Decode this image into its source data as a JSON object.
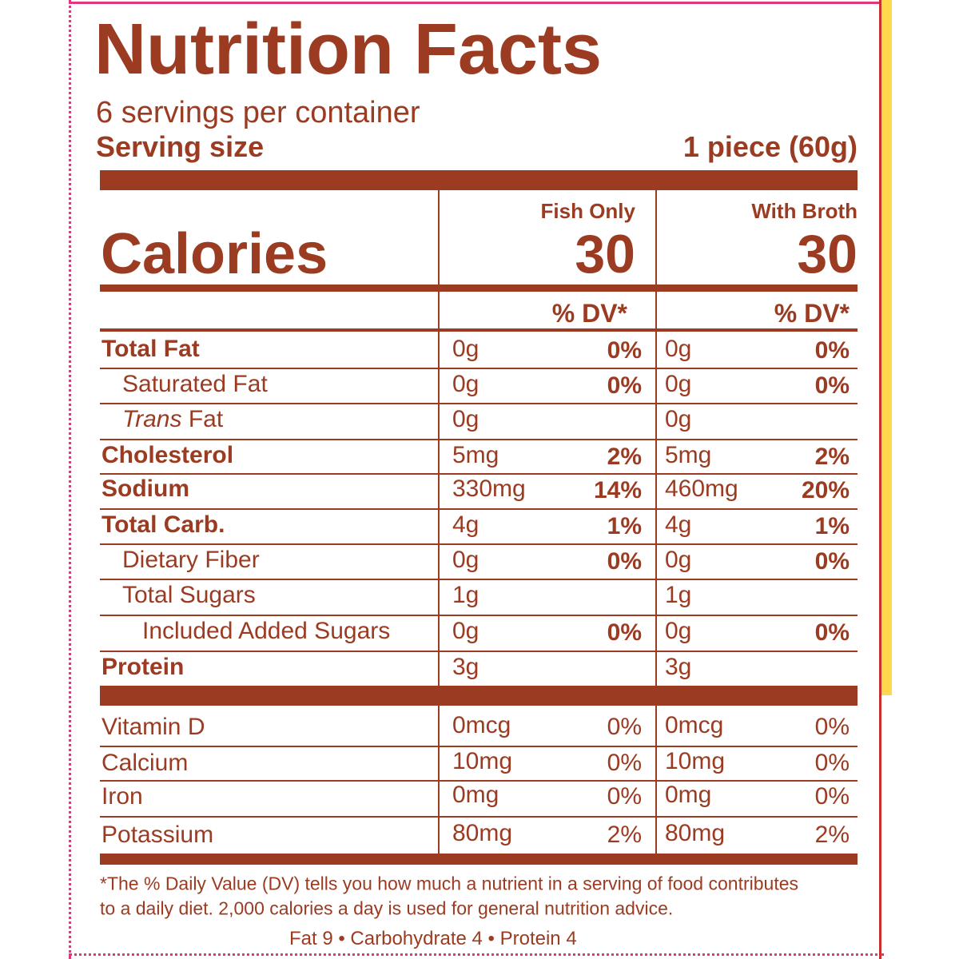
{
  "title": "Nutrition Facts",
  "servings": "6 servings per container",
  "serving_size": {
    "label": "Serving size",
    "value": "1 piece (60g)"
  },
  "calories_label": "Calories",
  "columns": [
    {
      "heading": "Fish Only",
      "calories": 30,
      "dv_heading": "% DV*"
    },
    {
      "heading": "With Broth",
      "calories": 30,
      "dv_heading": "% DV*"
    }
  ],
  "nutrients": [
    {
      "label": "Total Fat",
      "cells": [
        [
          "0g",
          "0%"
        ],
        [
          "0g",
          "0%"
        ]
      ]
    },
    {
      "label": "Saturated Fat",
      "cells": [
        [
          "0g",
          "0%"
        ],
        [
          "0g",
          "0%"
        ]
      ]
    },
    {
      "label_italic": "Trans",
      "label": "Fat",
      "cells": [
        [
          "0g"
        ],
        [
          "0g"
        ]
      ]
    },
    {
      "label": "Cholesterol",
      "cells": [
        [
          "5mg",
          "2%"
        ],
        [
          "5mg",
          "2%"
        ]
      ]
    },
    {
      "label": "Sodium",
      "cells": [
        [
          "330mg",
          "14%"
        ],
        [
          "460mg",
          "20%"
        ]
      ]
    },
    {
      "label": "Total Carb.",
      "cells": [
        [
          "4g",
          "1%"
        ],
        [
          "4g",
          "1%"
        ]
      ]
    },
    {
      "label": "Dietary Fiber",
      "cells": [
        [
          "0g",
          "0%"
        ],
        [
          "0g",
          "0%"
        ]
      ]
    },
    {
      "label": "Total Sugars",
      "cells": [
        [
          "1g"
        ],
        [
          "1g"
        ]
      ]
    },
    {
      "label": "Included Added Sugars",
      "cells": [
        [
          "0g",
          "0%"
        ],
        [
          "0g",
          "0%"
        ]
      ]
    },
    {
      "label": "Protein",
      "cells": [
        [
          "3g"
        ],
        [
          "3g"
        ]
      ]
    }
  ],
  "vitamins": [
    {
      "label": "Vitamin D",
      "cells": [
        [
          "0mcg",
          "0%"
        ],
        [
          "0mcg",
          "0%"
        ]
      ]
    },
    {
      "label": "Calcium",
      "cells": [
        [
          "10mg",
          "0%"
        ],
        [
          "10mg",
          "0%"
        ]
      ]
    },
    {
      "label": "Iron",
      "cells": [
        [
          "0mg",
          "0%"
        ],
        [
          "0mg",
          "0%"
        ]
      ]
    },
    {
      "label": "Potassium",
      "cells": [
        [
          "80mg",
          "2%"
        ],
        [
          "80mg",
          "2%"
        ]
      ]
    }
  ],
  "footnote": [
    "*The % Daily Value (DV) tells you how much a nutrient in a serving of food contributes",
    "to a daily diet. 2,000 calories a day is used for general nutrition advice."
  ],
  "calories_per_gram": "Fat 9 • Carbohydrate 4 • Protein 4"
}
